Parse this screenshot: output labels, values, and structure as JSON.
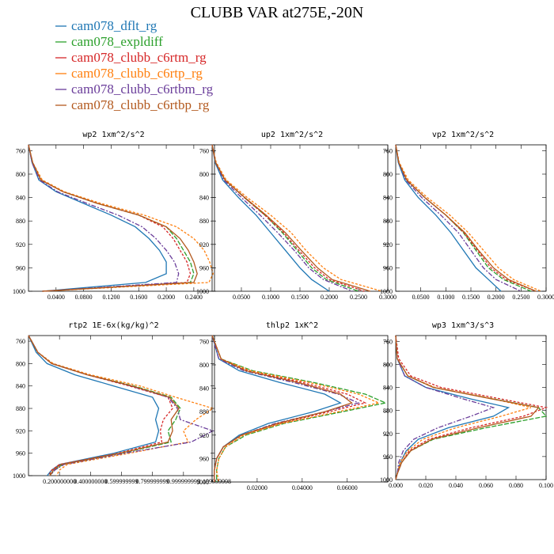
{
  "figure_title": "CLUBB VAR at275E,-20N",
  "legend": [
    {
      "label": "cam078_dflt_rg",
      "color": "#1f77b4"
    },
    {
      "label": "cam078_expldiff",
      "color": "#2ca02c"
    },
    {
      "label": "cam078_clubb_c6rtm_rg",
      "color": "#d62728"
    },
    {
      "label": "cam078_clubb_c6rtp_rg",
      "color": "#ff7f0e"
    },
    {
      "label": "cam078_clubb_c6rtbm_rg",
      "color": "#6a3d9a"
    },
    {
      "label": "cam078_clubb_c6rtbp_rg",
      "color": "#b3591e"
    }
  ],
  "chart_data": [
    {
      "type": "line",
      "title": "wp2   1xm^2/s^2",
      "xlim": [
        0,
        0.27
      ],
      "ylim": [
        1000,
        750
      ],
      "y_ticks": [
        760,
        800,
        840,
        880,
        920,
        960,
        1000
      ],
      "x_ticks": [
        0.04,
        0.08,
        0.12,
        0.16,
        0.2,
        0.24
      ],
      "x_tick_labels": [
        "0.0400",
        "0.0800",
        "0.1200",
        "0.1600",
        "0.2000",
        "0.2400"
      ],
      "y": [
        750,
        780,
        810,
        830,
        850,
        870,
        890,
        910,
        930,
        950,
        970,
        985,
        1000
      ],
      "series": [
        {
          "values": [
            0,
            0.005,
            0.015,
            0.04,
            0.08,
            0.12,
            0.155,
            0.175,
            0.19,
            0.2,
            0.2,
            0.17,
            0.02
          ]
        },
        {
          "values": [
            0,
            0.006,
            0.018,
            0.05,
            0.1,
            0.16,
            0.2,
            0.215,
            0.225,
            0.235,
            0.24,
            0.235,
            0.02
          ]
        },
        {
          "values": [
            0,
            0.006,
            0.018,
            0.05,
            0.1,
            0.16,
            0.195,
            0.21,
            0.22,
            0.23,
            0.235,
            0.23,
            0.02
          ]
        },
        {
          "values": [
            0,
            0.006,
            0.02,
            0.052,
            0.105,
            0.168,
            0.215,
            0.24,
            0.255,
            0.263,
            0.268,
            0.262,
            0.02
          ]
        },
        {
          "values": [
            0,
            0.005,
            0.016,
            0.042,
            0.085,
            0.13,
            0.165,
            0.185,
            0.2,
            0.212,
            0.218,
            0.215,
            0.02
          ]
        },
        {
          "values": [
            0,
            0.006,
            0.018,
            0.05,
            0.1,
            0.16,
            0.2,
            0.22,
            0.232,
            0.24,
            0.245,
            0.24,
            0.02
          ]
        }
      ]
    },
    {
      "type": "line",
      "title": "up2   1xm^2/s^2",
      "xlim": [
        0,
        0.3
      ],
      "ylim": [
        1000,
        750
      ],
      "y_ticks": [
        760,
        800,
        840,
        880,
        920,
        960,
        1000
      ],
      "x_ticks": [
        0.05,
        0.1,
        0.15,
        0.2,
        0.25,
        0.3
      ],
      "x_tick_labels": [
        "0.0500",
        "0.1000",
        "0.1500",
        "0.2000",
        "0.2500",
        "0.3000"
      ],
      "y": [
        750,
        780,
        810,
        840,
        870,
        900,
        930,
        960,
        980,
        1000
      ],
      "series": [
        {
          "values": [
            0,
            0.005,
            0.018,
            0.045,
            0.075,
            0.1,
            0.125,
            0.15,
            0.17,
            0.2
          ]
        },
        {
          "values": [
            0,
            0.006,
            0.022,
            0.055,
            0.09,
            0.12,
            0.145,
            0.17,
            0.195,
            0.25
          ]
        },
        {
          "values": [
            0,
            0.006,
            0.022,
            0.055,
            0.09,
            0.122,
            0.148,
            0.175,
            0.2,
            0.26
          ]
        },
        {
          "values": [
            0,
            0.007,
            0.024,
            0.06,
            0.1,
            0.135,
            0.16,
            0.19,
            0.22,
            0.29
          ]
        },
        {
          "values": [
            0,
            0.006,
            0.02,
            0.05,
            0.082,
            0.112,
            0.14,
            0.165,
            0.19,
            0.24
          ]
        },
        {
          "values": [
            0,
            0.006,
            0.022,
            0.056,
            0.092,
            0.125,
            0.152,
            0.18,
            0.205,
            0.27
          ]
        }
      ]
    },
    {
      "type": "line",
      "title": "vp2   1xm^2/s^2",
      "xlim": [
        0,
        0.3
      ],
      "ylim": [
        1000,
        750
      ],
      "y_ticks": [
        760,
        800,
        840,
        880,
        920,
        960,
        1000
      ],
      "x_ticks": [
        0.05,
        0.1,
        0.15,
        0.2,
        0.25,
        0.3
      ],
      "x_tick_labels": [
        "0.0500",
        "0.1000",
        "0.1500",
        "0.2000",
        "0.2500",
        "0.3000"
      ],
      "y": [
        750,
        780,
        810,
        840,
        870,
        900,
        930,
        960,
        980,
        1000
      ],
      "series": [
        {
          "values": [
            0,
            0.005,
            0.018,
            0.045,
            0.08,
            0.11,
            0.135,
            0.16,
            0.185,
            0.21
          ]
        },
        {
          "values": [
            0,
            0.006,
            0.022,
            0.058,
            0.1,
            0.135,
            0.16,
            0.185,
            0.215,
            0.27
          ]
        },
        {
          "values": [
            0,
            0.006,
            0.022,
            0.058,
            0.1,
            0.136,
            0.163,
            0.19,
            0.22,
            0.28
          ]
        },
        {
          "values": [
            0,
            0.007,
            0.025,
            0.063,
            0.108,
            0.145,
            0.175,
            0.205,
            0.235,
            0.29
          ]
        },
        {
          "values": [
            0,
            0.006,
            0.02,
            0.052,
            0.09,
            0.125,
            0.15,
            0.175,
            0.2,
            0.25
          ]
        },
        {
          "values": [
            0,
            0.006,
            0.022,
            0.058,
            0.1,
            0.138,
            0.165,
            0.195,
            0.225,
            0.28
          ]
        }
      ]
    },
    {
      "type": "line",
      "title": "rtp2   1E-6x(kg/kg)^2",
      "xlim": [
        0,
        1.2
      ],
      "ylim": [
        1000,
        750
      ],
      "y_ticks": [
        760,
        800,
        840,
        880,
        920,
        960,
        1000
      ],
      "x_ticks": [
        0.2,
        0.4,
        0.6,
        0.8,
        1.0,
        1.2
      ],
      "x_tick_labels": [
        "0.200000000",
        "0.400000000",
        "0.599999999",
        "0.799999999",
        "0.999999999",
        "1.199999998"
      ],
      "y": [
        750,
        780,
        800,
        820,
        840,
        860,
        880,
        900,
        920,
        940,
        960,
        980,
        990,
        1000
      ],
      "series": [
        {
          "values": [
            0,
            0.05,
            0.12,
            0.3,
            0.55,
            0.8,
            0.84,
            0.82,
            0.84,
            0.82,
            0.55,
            0.2,
            0.15,
            0.12
          ]
        },
        {
          "values": [
            0,
            0.06,
            0.15,
            0.38,
            0.68,
            0.92,
            0.98,
            0.95,
            0.9,
            0.92,
            0.6,
            0.22,
            0.17,
            0.13
          ]
        },
        {
          "values": [
            0,
            0.06,
            0.15,
            0.38,
            0.65,
            0.9,
            0.93,
            0.87,
            0.85,
            0.86,
            0.58,
            0.2,
            0.15,
            0.13
          ]
        },
        {
          "values": [
            0,
            0.06,
            0.16,
            0.4,
            0.72,
            0.95,
            1.19,
            1.08,
            1.0,
            1.03,
            0.65,
            0.25,
            0.2,
            0.18
          ]
        },
        {
          "values": [
            0,
            0.06,
            0.15,
            0.38,
            0.66,
            0.9,
            0.96,
            0.98,
            1.19,
            1.05,
            0.62,
            0.23,
            0.17,
            0.14
          ]
        },
        {
          "values": [
            0,
            0.06,
            0.15,
            0.38,
            0.67,
            0.91,
            0.97,
            0.92,
            0.93,
            0.9,
            0.59,
            0.21,
            0.16,
            0.14
          ]
        }
      ]
    },
    {
      "type": "line",
      "title": "thlp2   1xK^2",
      "xlim": [
        0,
        0.078
      ],
      "ylim": [
        1000,
        750
      ],
      "y_ticks": [
        760,
        800,
        840,
        880,
        920,
        960,
        1000
      ],
      "x_ticks": [
        0.02,
        0.04,
        0.06
      ],
      "x_tick_labels": [
        "0.02000",
        "0.04000",
        "0.06000"
      ],
      "y": [
        750,
        790,
        810,
        830,
        850,
        865,
        880,
        900,
        920,
        940,
        960,
        980,
        1000
      ],
      "series": [
        {
          "values": [
            0,
            0.003,
            0.012,
            0.03,
            0.05,
            0.057,
            0.045,
            0.025,
            0.012,
            0.005,
            0.002,
            0.001,
            0.001
          ]
        },
        {
          "values": [
            0,
            0.004,
            0.018,
            0.045,
            0.068,
            0.077,
            0.058,
            0.032,
            0.015,
            0.006,
            0.003,
            0.002,
            0.002
          ]
        },
        {
          "values": [
            0,
            0.004,
            0.016,
            0.04,
            0.06,
            0.068,
            0.052,
            0.03,
            0.013,
            0.005,
            0.002,
            0.001,
            0.001
          ]
        },
        {
          "values": [
            0,
            0.004,
            0.017,
            0.043,
            0.065,
            0.074,
            0.056,
            0.031,
            0.014,
            0.006,
            0.003,
            0.002,
            0.003
          ]
        },
        {
          "values": [
            0,
            0.003,
            0.014,
            0.036,
            0.056,
            0.065,
            0.05,
            0.028,
            0.013,
            0.005,
            0.002,
            0.001,
            0.001
          ]
        },
        {
          "values": [
            0,
            0.004,
            0.015,
            0.038,
            0.057,
            0.062,
            0.05,
            0.029,
            0.013,
            0.005,
            0.002,
            0.001,
            0.001
          ]
        }
      ]
    },
    {
      "type": "line",
      "title": "wp3   1xm^3/s^3",
      "xlim": [
        0,
        0.1
      ],
      "ylim": [
        1000,
        750
      ],
      "y_ticks": [
        760,
        800,
        840,
        880,
        920,
        960,
        1000
      ],
      "x_ticks": [
        0,
        0.02,
        0.04,
        0.06,
        0.08,
        0.1
      ],
      "x_tick_labels": [
        "0.000",
        "0.020",
        "0.040",
        "0.060",
        "0.080",
        "0.100"
      ],
      "y": [
        750,
        790,
        820,
        840,
        860,
        875,
        890,
        910,
        930,
        950,
        970,
        990,
        1000
      ],
      "series": [
        {
          "values": [
            0,
            0.001,
            0.006,
            0.02,
            0.05,
            0.075,
            0.065,
            0.035,
            0.015,
            0.007,
            0.003,
            0.001,
            0.0
          ]
        },
        {
          "values": [
            0,
            0.001,
            0.008,
            0.025,
            0.065,
            0.095,
            0.1,
            0.06,
            0.025,
            0.01,
            0.004,
            0.001,
            0.0
          ]
        },
        {
          "values": [
            0,
            0.002,
            0.01,
            0.03,
            0.07,
            0.1,
            0.085,
            0.05,
            0.022,
            0.009,
            0.004,
            0.001,
            0.0
          ]
        },
        {
          "values": [
            0,
            0.001,
            0.008,
            0.026,
            0.065,
            0.09,
            0.07,
            0.04,
            0.018,
            0.008,
            0.003,
            0.001,
            0.0
          ]
        },
        {
          "values": [
            0,
            0.001,
            0.006,
            0.02,
            0.045,
            0.065,
            0.05,
            0.028,
            0.012,
            0.005,
            0.002,
            0.001,
            0.0
          ]
        },
        {
          "values": [
            0,
            0.001,
            0.008,
            0.025,
            0.064,
            0.095,
            0.09,
            0.055,
            0.024,
            0.01,
            0.004,
            0.001,
            0.0
          ]
        }
      ]
    }
  ]
}
